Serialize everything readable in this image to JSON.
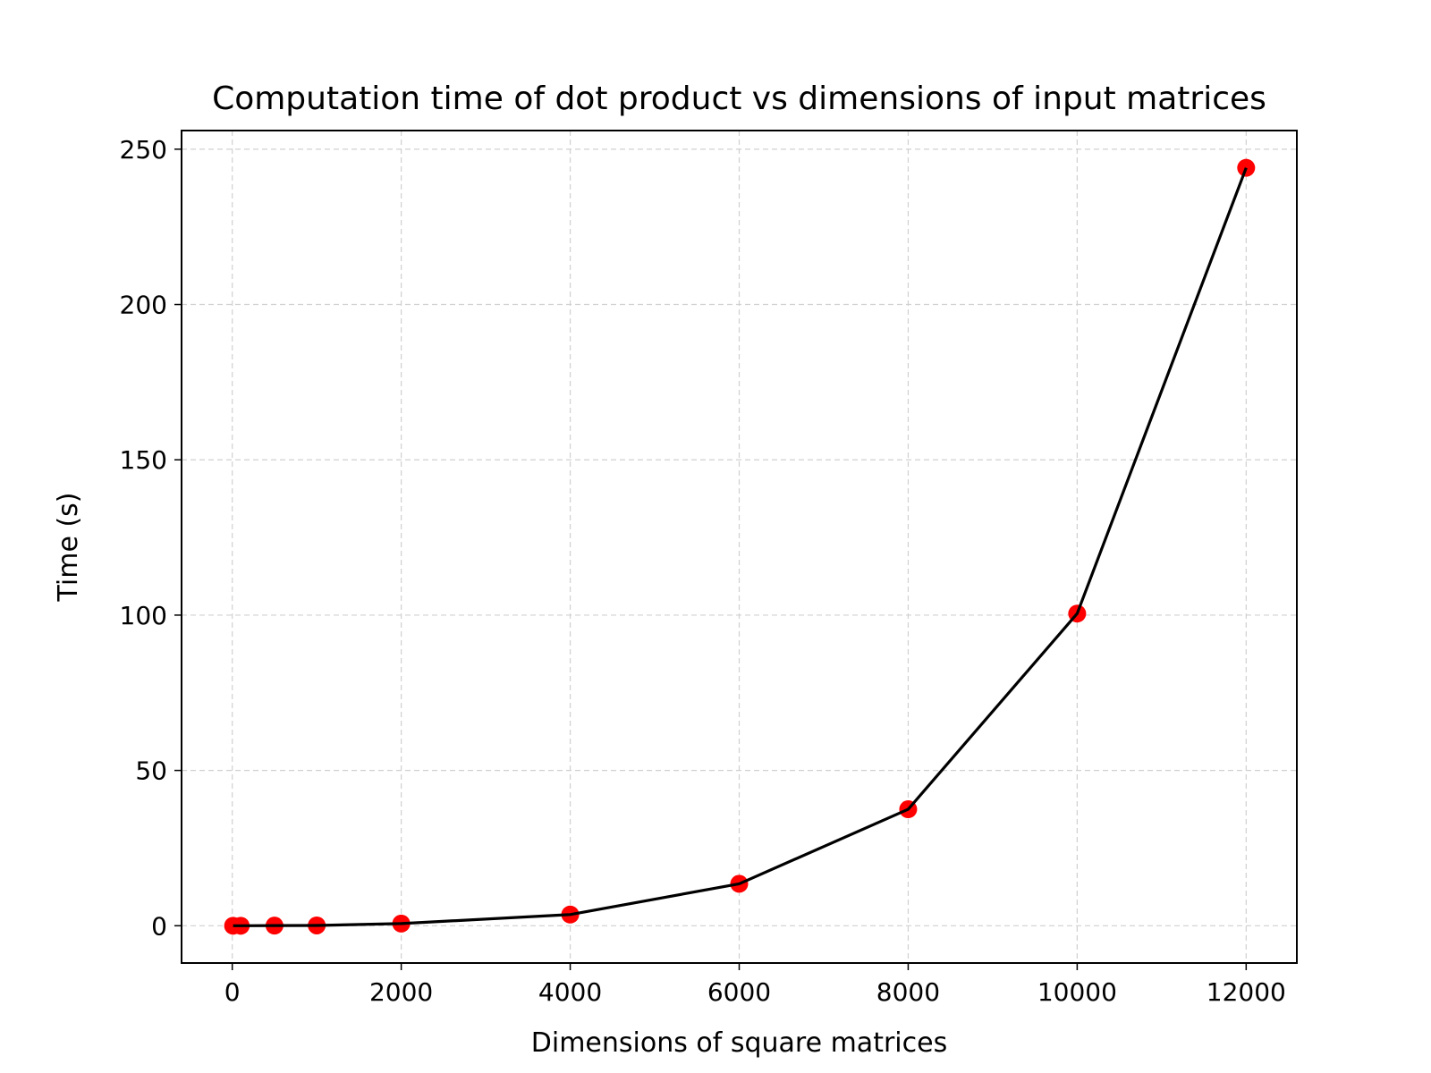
{
  "chart_data": {
    "type": "line",
    "title": "Computation time of dot product vs dimensions of input matrices",
    "xlabel": "Dimensions of square matrices",
    "ylabel": "Time (s)",
    "xlim": [
      -600,
      12600
    ],
    "ylim": [
      -12,
      256
    ],
    "xticks": [
      0,
      2000,
      4000,
      6000,
      8000,
      10000,
      12000
    ],
    "xtick_labels": [
      "0",
      "2000",
      "4000",
      "6000",
      "8000",
      "10000",
      "12000"
    ],
    "yticks": [
      0,
      50,
      100,
      150,
      200,
      250
    ],
    "ytick_labels": [
      "0",
      "50",
      "100",
      "150",
      "200",
      "250"
    ],
    "grid": true,
    "x": [
      10,
      100,
      500,
      1000,
      2000,
      4000,
      6000,
      8000,
      10000,
      12000
    ],
    "series": [
      {
        "values": [
          0.0,
          0.0,
          0.05,
          0.1,
          0.7,
          3.6,
          13.5,
          37.5,
          100.5,
          244
        ],
        "line_color": "#000000",
        "marker_color": "#ff0000"
      }
    ]
  }
}
